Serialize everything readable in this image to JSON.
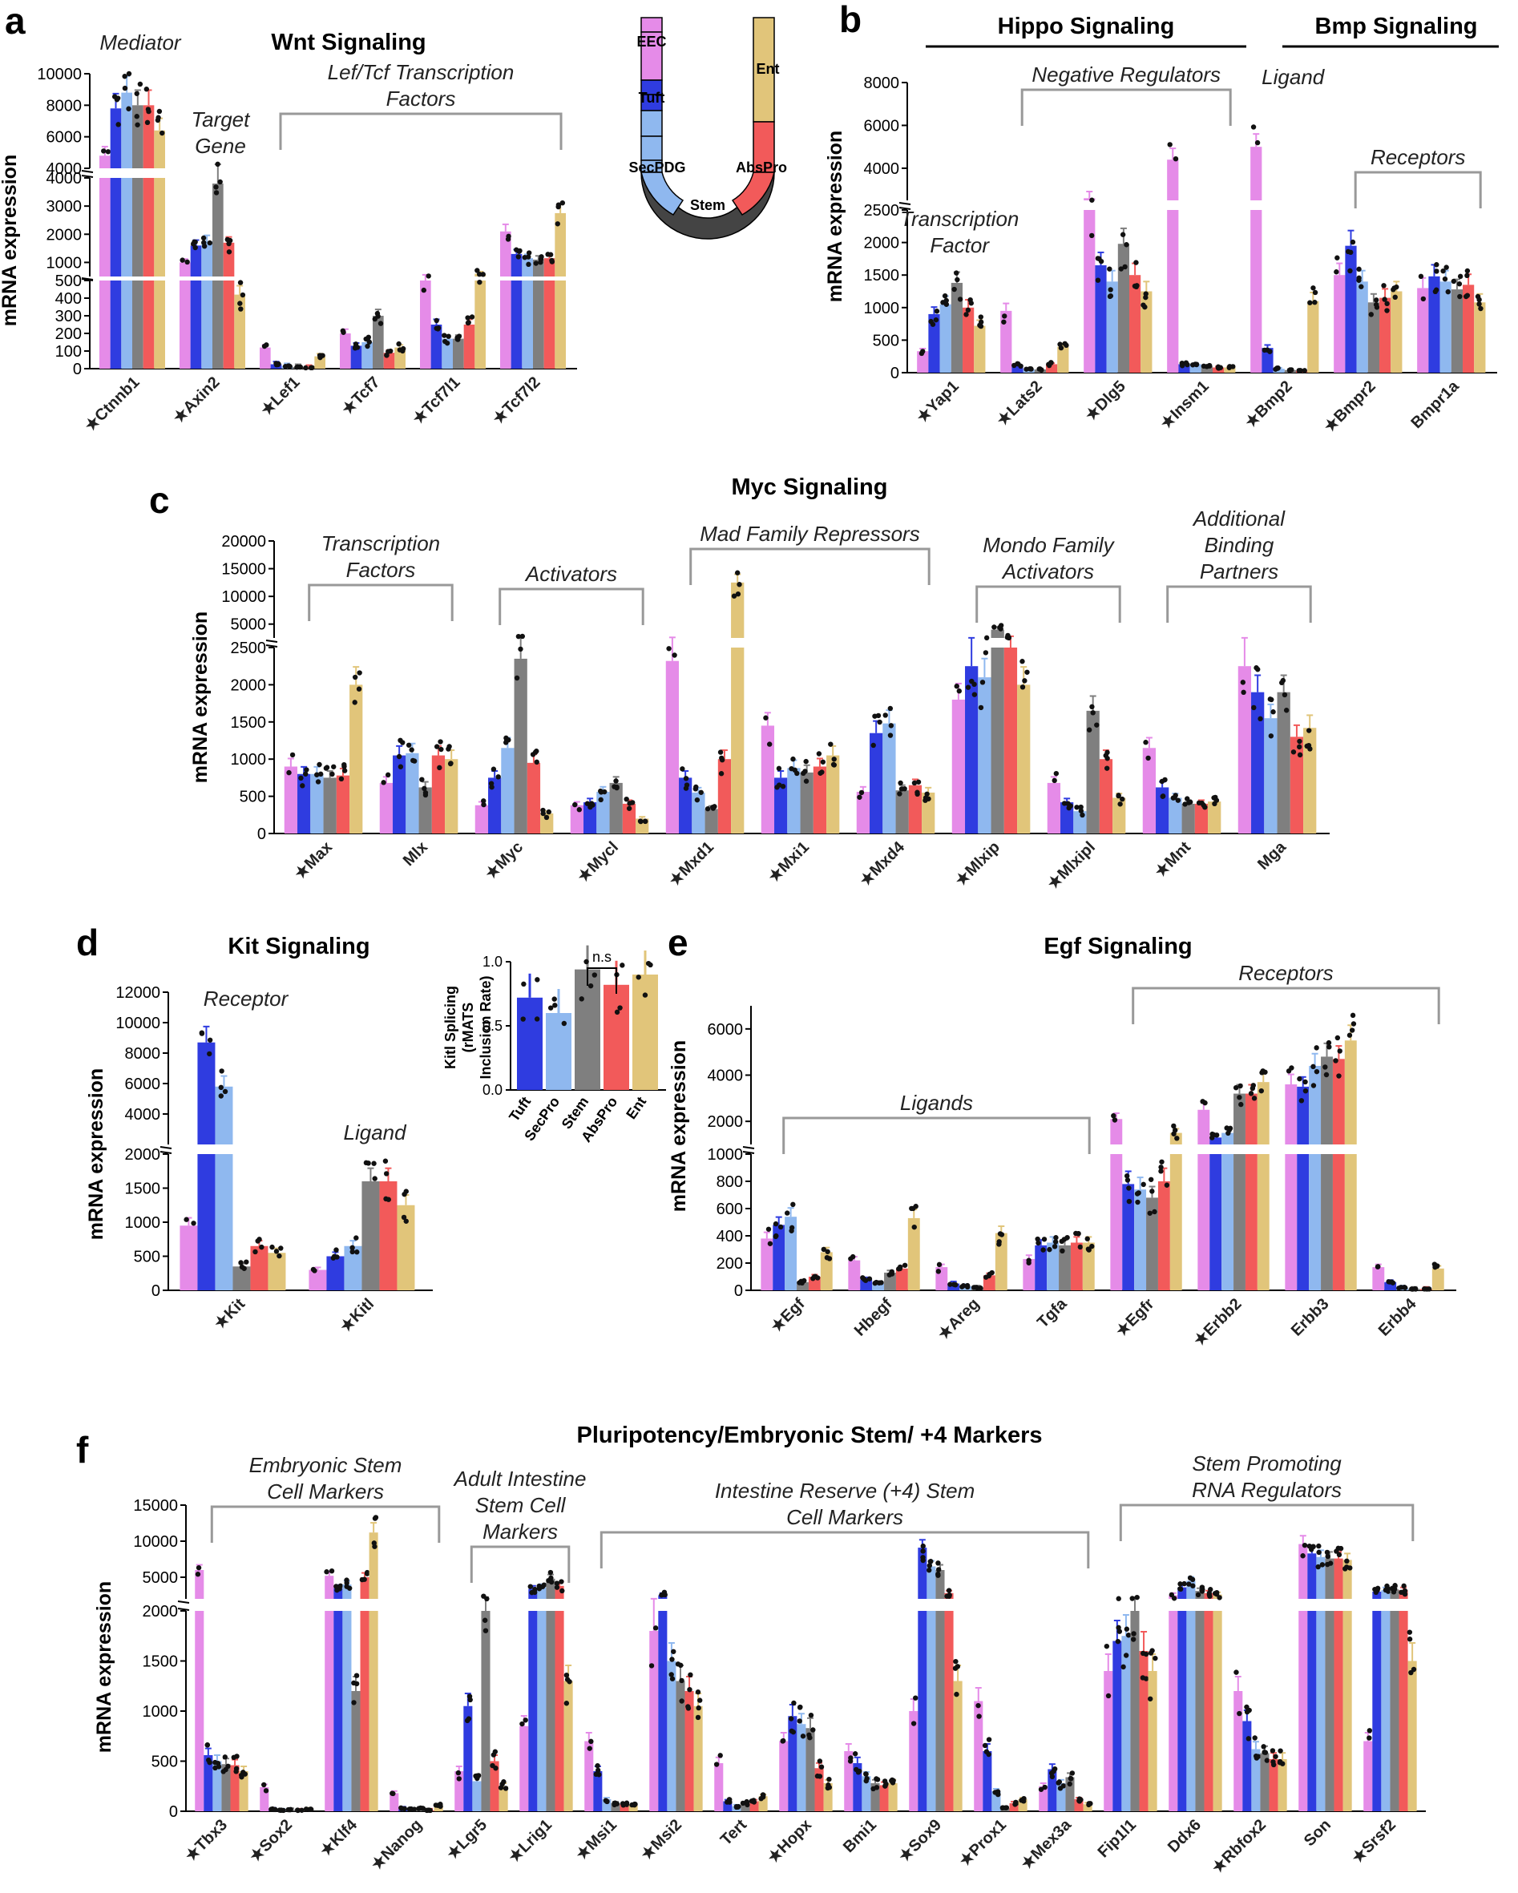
{
  "groups": [
    "EEC",
    "Tuft",
    "SecPDG",
    "Stem",
    "AbsPro",
    "Ent"
  ],
  "colors": {
    "EEC": "#e58be8",
    "Tuft": "#2f3ce0",
    "SecPDG": "#8fb8ef",
    "Stem": "#7f7f7f",
    "AbsPro": "#f25a5a",
    "Ent": "#e1c57a"
  },
  "y_axis_label": "mRNA expression",
  "chart_data": [
    {
      "type": "bar",
      "panel": "a",
      "title": "Wnt Signaling",
      "categories": [
        "Ctnnb1",
        "Axin2",
        "Lef1",
        "Tcf7",
        "Tcf7l1",
        "Tcf7l2"
      ],
      "star": [
        true,
        true,
        true,
        true,
        true,
        true
      ],
      "segments": [
        {
          "range": [
            0,
            500
          ],
          "ticks": [
            0,
            100,
            200,
            300,
            400,
            500
          ]
        },
        {
          "range": [
            500,
            4000
          ],
          "ticks": [
            1000,
            2000,
            3000,
            4000
          ]
        },
        {
          "range": [
            4000,
            10000
          ],
          "ticks": [
            4000,
            6000,
            8000,
            10000
          ]
        }
      ],
      "series": [
        {
          "name": "EEC",
          "values": [
            4800,
            1000,
            120,
            200,
            500,
            2100
          ]
        },
        {
          "name": "Tuft",
          "values": [
            7800,
            1600,
            25,
            130,
            250,
            1300
          ]
        },
        {
          "name": "SecPDG",
          "values": [
            8800,
            1750,
            15,
            150,
            170,
            1150
          ]
        },
        {
          "name": "Stem",
          "values": [
            8000,
            3800,
            10,
            300,
            170,
            1100
          ]
        },
        {
          "name": "AbsPro",
          "values": [
            8000,
            1700,
            5,
            90,
            250,
            1150
          ]
        },
        {
          "name": "Ent",
          "values": [
            6400,
            420,
            70,
            120,
            600,
            2750
          ]
        }
      ],
      "annotations": [
        {
          "text": "Mediator",
          "covers": [
            0,
            0
          ]
        },
        {
          "text": "Target Gene",
          "covers": [
            1,
            1
          ]
        },
        {
          "text": "Lef/Tcf Transcription Factors",
          "covers": [
            2,
            5
          ]
        }
      ]
    },
    {
      "type": "bar",
      "panel": "b",
      "title_left": "Hippo Signaling",
      "title_right": "Bmp Signaling",
      "categories": [
        "Yap1",
        "Lats2",
        "Dlg5",
        "Insm1",
        "Bmp2",
        "Bmpr2",
        "Bmpr1a"
      ],
      "star": [
        true,
        true,
        true,
        true,
        true,
        true,
        false
      ],
      "segments": [
        {
          "range": [
            0,
            2500
          ],
          "ticks": [
            0,
            500,
            1000,
            1500,
            2000,
            2500
          ]
        },
        {
          "range": [
            2500,
            8000
          ],
          "ticks": [
            4000,
            6000,
            8000
          ]
        }
      ],
      "series": [
        {
          "name": "EEC",
          "values": [
            330,
            950,
            2600,
            4400,
            5000,
            1500,
            1300
          ]
        },
        {
          "name": "Tuft",
          "values": [
            900,
            120,
            1650,
            130,
            380,
            1950,
            1480
          ]
        },
        {
          "name": "SecPDG",
          "values": [
            1050,
            50,
            1400,
            130,
            60,
            1400,
            1400
          ]
        },
        {
          "name": "Stem",
          "values": [
            1380,
            50,
            1980,
            100,
            40,
            1080,
            1280
          ]
        },
        {
          "name": "AbsPro",
          "values": [
            1000,
            130,
            1500,
            80,
            30,
            1150,
            1350
          ]
        },
        {
          "name": "Ent",
          "values": [
            720,
            400,
            1250,
            80,
            1100,
            1250,
            1080
          ]
        }
      ],
      "annotations": [
        {
          "text": "Transcription Factor",
          "covers": [
            0,
            0
          ]
        },
        {
          "text": "Negative Regulators",
          "covers": [
            1,
            3
          ]
        },
        {
          "text": "Ligand",
          "covers": [
            4,
            4
          ]
        },
        {
          "text": "Receptors",
          "covers": [
            5,
            6
          ]
        }
      ]
    },
    {
      "type": "bar",
      "panel": "c",
      "title": "Myc Signaling",
      "categories": [
        "Max",
        "Mlx",
        "Myc",
        "Mycl",
        "Mxd1",
        "Mxi1",
        "Mxd4",
        "Mlxip",
        "Mlxipl",
        "Mnt",
        "Mga"
      ],
      "star": [
        true,
        false,
        true,
        true,
        true,
        true,
        true,
        true,
        true,
        true,
        false
      ],
      "segments": [
        {
          "range": [
            0,
            2500
          ],
          "ticks": [
            0,
            500,
            1000,
            1500,
            2000,
            2500
          ]
        },
        {
          "range": [
            2500,
            20000
          ],
          "ticks": [
            5000,
            10000,
            15000,
            20000
          ]
        }
      ],
      "series": [
        {
          "name": "EEC",
          "values": [
            900,
            680,
            380,
            380,
            2320,
            1450,
            560,
            1800,
            680,
            1150,
            2250
          ]
        },
        {
          "name": "Tuft",
          "values": [
            800,
            1050,
            750,
            420,
            750,
            750,
            1350,
            2250,
            420,
            620,
            1900
          ]
        },
        {
          "name": "SecPDG",
          "values": [
            800,
            1080,
            1150,
            560,
            550,
            880,
            1480,
            2100,
            300,
            480,
            1550
          ]
        },
        {
          "name": "Stem",
          "values": [
            750,
            620,
            2350,
            680,
            330,
            820,
            580,
            4000,
            1650,
            400,
            1900
          ]
        },
        {
          "name": "AbsPro",
          "values": [
            780,
            1050,
            950,
            400,
            1000,
            900,
            650,
            2500,
            1000,
            400,
            1300
          ]
        },
        {
          "name": "Ent",
          "values": [
            2000,
            1000,
            270,
            200,
            12500,
            1050,
            550,
            2000,
            480,
            430,
            1420
          ]
        }
      ],
      "annotations": [
        {
          "text": "Transcription Factors",
          "covers": [
            0,
            1
          ]
        },
        {
          "text": "Activators",
          "covers": [
            2,
            3
          ]
        },
        {
          "text": "Mad Family Repressors",
          "covers": [
            4,
            6
          ]
        },
        {
          "text": "Mondo Family Activators",
          "covers": [
            7,
            8
          ]
        },
        {
          "text": "Additional Binding Partners",
          "covers": [
            9,
            10
          ]
        }
      ]
    },
    {
      "type": "bar",
      "panel": "d",
      "title": "Kit Signaling",
      "categories": [
        "Kit",
        "Kitl"
      ],
      "star": [
        true,
        true
      ],
      "segments": [
        {
          "range": [
            0,
            2000
          ],
          "ticks": [
            0,
            500,
            1000,
            1500,
            2000
          ]
        },
        {
          "range": [
            2000,
            12000
          ],
          "ticks": [
            4000,
            6000,
            8000,
            10000,
            12000
          ]
        }
      ],
      "series": [
        {
          "name": "EEC",
          "values": [
            950,
            300
          ]
        },
        {
          "name": "Tuft",
          "values": [
            8700,
            500
          ]
        },
        {
          "name": "SecPDG",
          "values": [
            5800,
            650
          ]
        },
        {
          "name": "Stem",
          "values": [
            350,
            1600
          ]
        },
        {
          "name": "AbsPro",
          "values": [
            650,
            1600
          ]
        },
        {
          "name": "Ent",
          "values": [
            550,
            1250
          ]
        }
      ],
      "annotations": [
        {
          "text": "Receptor",
          "covers": [
            0,
            0
          ]
        },
        {
          "text": "Ligand",
          "covers": [
            1,
            1
          ]
        }
      ],
      "inset": {
        "ylabel_lines": [
          "Kitl Splicing",
          "(rMATS",
          "Inclusion Rate)"
        ],
        "categories": [
          "Tuft",
          "SecPro",
          "Stem",
          "AbsPro",
          "Ent"
        ],
        "values": [
          0.72,
          0.6,
          0.94,
          0.82,
          0.9
        ],
        "ylim": [
          0,
          1
        ],
        "ticks": [
          "0.0",
          "0.5",
          "1.0"
        ],
        "significance": "n.s"
      }
    },
    {
      "type": "bar",
      "panel": "e",
      "title": "Egf Signaling",
      "categories": [
        "Egf",
        "Hbegf",
        "Areg",
        "Tgfa",
        "Egfr",
        "Erbb2",
        "Erbb3",
        "Erbb4"
      ],
      "star": [
        true,
        false,
        true,
        false,
        true,
        true,
        false,
        false
      ],
      "segments": [
        {
          "range": [
            0,
            1000
          ],
          "ticks": [
            0,
            200,
            400,
            600,
            800,
            1000
          ]
        },
        {
          "range": [
            1000,
            7000
          ],
          "ticks": [
            2000,
            4000,
            6000
          ]
        }
      ],
      "series": [
        {
          "name": "EEC",
          "values": [
            380,
            220,
            170,
            230,
            2100,
            2500,
            3600,
            170
          ]
        },
        {
          "name": "Tuft",
          "values": [
            480,
            80,
            50,
            330,
            780,
            1300,
            3500,
            60
          ]
        },
        {
          "name": "SecPDG",
          "values": [
            540,
            50,
            30,
            350,
            740,
            1500,
            4400,
            20
          ]
        },
        {
          "name": "Stem",
          "values": [
            60,
            130,
            20,
            330,
            680,
            3200,
            4800,
            10
          ]
        },
        {
          "name": "AbsPro",
          "values": [
            100,
            160,
            110,
            350,
            800,
            3200,
            4700,
            10
          ]
        },
        {
          "name": "Ent",
          "values": [
            280,
            530,
            420,
            350,
            1500,
            3700,
            5500,
            160
          ]
        }
      ],
      "annotations": [
        {
          "text": "Ligands",
          "covers": [
            0,
            3
          ]
        },
        {
          "text": "Receptors",
          "covers": [
            4,
            7
          ]
        }
      ]
    },
    {
      "type": "bar",
      "panel": "f",
      "title": "Pluripotency/Embryonic Stem/ +4 Markers",
      "categories": [
        "Tbx3",
        "Sox2",
        "Klf4",
        "Nanog",
        "Lgr5",
        "Lrig1",
        "Msi1",
        "Msi2",
        "Tert",
        "Hopx",
        "Bmi1",
        "Sox9",
        "Prox1",
        "Mex3a",
        "Fip1l1",
        "Ddx6",
        "Rbfox2",
        "Son",
        "Srsf2"
      ],
      "star": [
        true,
        true,
        true,
        true,
        true,
        true,
        true,
        true,
        false,
        true,
        false,
        true,
        true,
        true,
        false,
        false,
        true,
        false,
        true
      ],
      "segments": [
        {
          "range": [
            0,
            2000
          ],
          "ticks": [
            0,
            500,
            1000,
            1500,
            2000
          ]
        },
        {
          "range": [
            2000,
            15000
          ],
          "ticks": [
            5000,
            10000,
            15000
          ]
        }
      ],
      "series": [
        {
          "name": "EEC",
          "values": [
            6000,
            240,
            5200,
            180,
            400,
            850,
            700,
            1800,
            480,
            700,
            600,
            1000,
            1100,
            250,
            1400,
            2500,
            1200,
            9600,
            700
          ]
        },
        {
          "name": "Tuft",
          "values": [
            560,
            20,
            3500,
            30,
            1050,
            3400,
            400,
            2500,
            100,
            950,
            480,
            9100,
            600,
            420,
            1700,
            3600,
            900,
            8300,
            3000
          ]
        },
        {
          "name": "SecPDG",
          "values": [
            500,
            10,
            4000,
            20,
            300,
            3600,
            120,
            1500,
            50,
            870,
            350,
            6500,
            200,
            280,
            1750,
            4500,
            620,
            7800,
            3200
          ]
        },
        {
          "name": "Stem",
          "values": [
            470,
            15,
            1200,
            30,
            2000,
            4800,
            80,
            1300,
            80,
            830,
            280,
            6000,
            30,
            340,
            2000,
            3100,
            580,
            7600,
            3300
          ]
        },
        {
          "name": "AbsPro",
          "values": [
            460,
            10,
            5000,
            10,
            500,
            3800,
            70,
            1200,
            100,
            430,
            260,
            2800,
            80,
            120,
            1600,
            2800,
            520,
            7600,
            3200
          ]
        },
        {
          "name": "Ent",
          "values": [
            400,
            20,
            11200,
            60,
            250,
            1300,
            60,
            1050,
            150,
            280,
            280,
            1300,
            120,
            70,
            1400,
            2600,
            520,
            7400,
            1500
          ]
        }
      ],
      "annotations": [
        {
          "text": "Embryonic Stem Cell Markers",
          "covers": [
            0,
            3
          ]
        },
        {
          "text": "Adult Intestine Stem Cell Markers",
          "covers": [
            4,
            5
          ]
        },
        {
          "text": "Intestine Reserve (+4) Stem Cell Markers",
          "covers": [
            6,
            13
          ]
        },
        {
          "text": "Stem Promoting RNA Regulators",
          "covers": [
            14,
            18
          ]
        }
      ]
    }
  ],
  "schematic": {
    "left_labels": [
      "EEC",
      "Tuft",
      "SecPDG"
    ],
    "right_labels": [
      "Ent",
      "AbsPro"
    ],
    "bottom_label": "Stem"
  }
}
